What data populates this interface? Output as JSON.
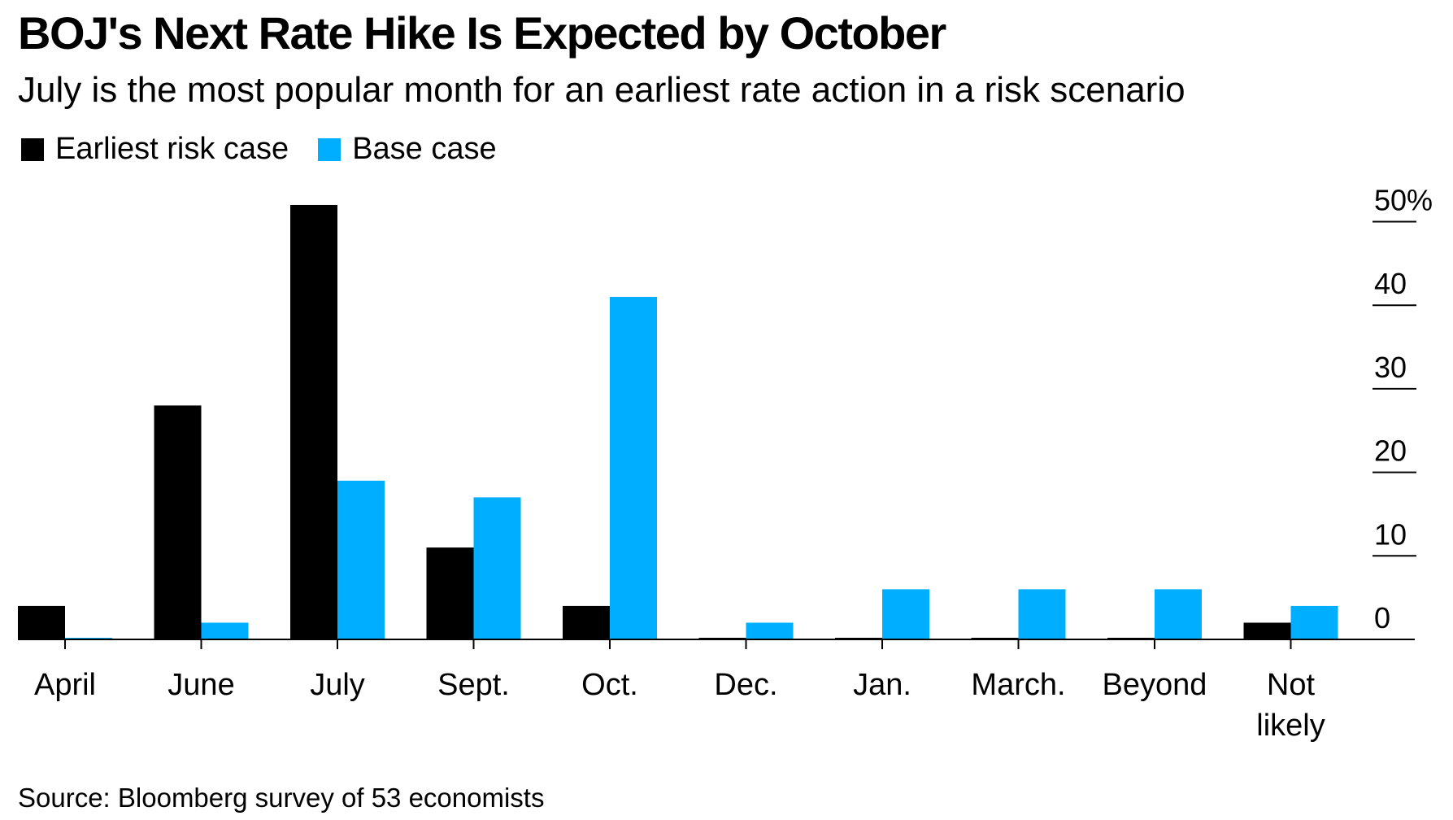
{
  "title": "BOJ's Next Rate Hike Is Expected by October",
  "subtitle": "July is the most popular month for an earliest rate action in a risk scenario",
  "source": "Source: Bloomberg survey of 53 economists",
  "colors": {
    "earliest_risk": "#000000",
    "base_case": "#00aeff"
  },
  "chart_data": {
    "type": "bar",
    "categories": [
      "April",
      "June",
      "July",
      "Sept.",
      "Oct.",
      "Dec.",
      "Jan.",
      "March.",
      "Beyond",
      "Not likely"
    ],
    "category_lines": [
      [
        "April"
      ],
      [
        "June"
      ],
      [
        "July"
      ],
      [
        "Sept."
      ],
      [
        "Oct."
      ],
      [
        "Dec."
      ],
      [
        "Jan."
      ],
      [
        "March."
      ],
      [
        "Beyond"
      ],
      [
        "Not",
        "likely"
      ]
    ],
    "series": [
      {
        "name": "Earliest risk case",
        "values": [
          4,
          28,
          52,
          11,
          4,
          0,
          0,
          0,
          0,
          2
        ]
      },
      {
        "name": "Base case",
        "values": [
          0,
          2,
          19,
          17,
          41,
          2,
          6,
          6,
          6,
          4
        ]
      }
    ],
    "ylim": [
      0,
      52
    ],
    "yticks": [
      0,
      10,
      20,
      30,
      40,
      50
    ],
    "ytick_labels": [
      "0",
      "10",
      "20",
      "30",
      "40",
      "50%"
    ],
    "yaxis_position": "right",
    "grid": false,
    "legend_position": "top-left"
  }
}
